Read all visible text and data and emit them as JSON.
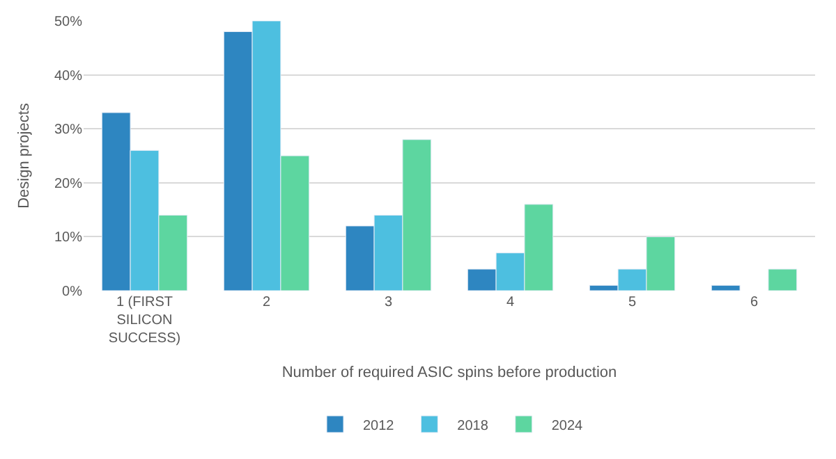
{
  "chart_data": {
    "type": "bar",
    "xlabel": "Number of required ASIC spins before production",
    "ylabel": "Design projects",
    "categories": [
      "1 (FIRST SILICON SUCCESS)",
      "2",
      "3",
      "4",
      "5",
      "6"
    ],
    "series": [
      {
        "name": "2012",
        "color": "#2e86c1",
        "values": [
          33,
          48,
          12,
          4,
          1,
          1
        ]
      },
      {
        "name": "2018",
        "color": "#4dbfe0",
        "values": [
          26,
          50,
          14,
          7,
          4,
          null
        ]
      },
      {
        "name": "2024",
        "color": "#5dd6a0",
        "values": [
          14,
          25,
          28,
          16,
          10,
          4
        ]
      }
    ],
    "ylim": [
      0,
      50
    ],
    "yticks": [
      {
        "value": 0,
        "label": "0%"
      },
      {
        "value": 10,
        "label": "10%"
      },
      {
        "value": 20,
        "label": "20%"
      },
      {
        "value": 30,
        "label": "30%"
      },
      {
        "value": 40,
        "label": "40%"
      },
      {
        "value": 50,
        "label": "50%"
      }
    ],
    "grid": "y",
    "legend": "bottom"
  }
}
